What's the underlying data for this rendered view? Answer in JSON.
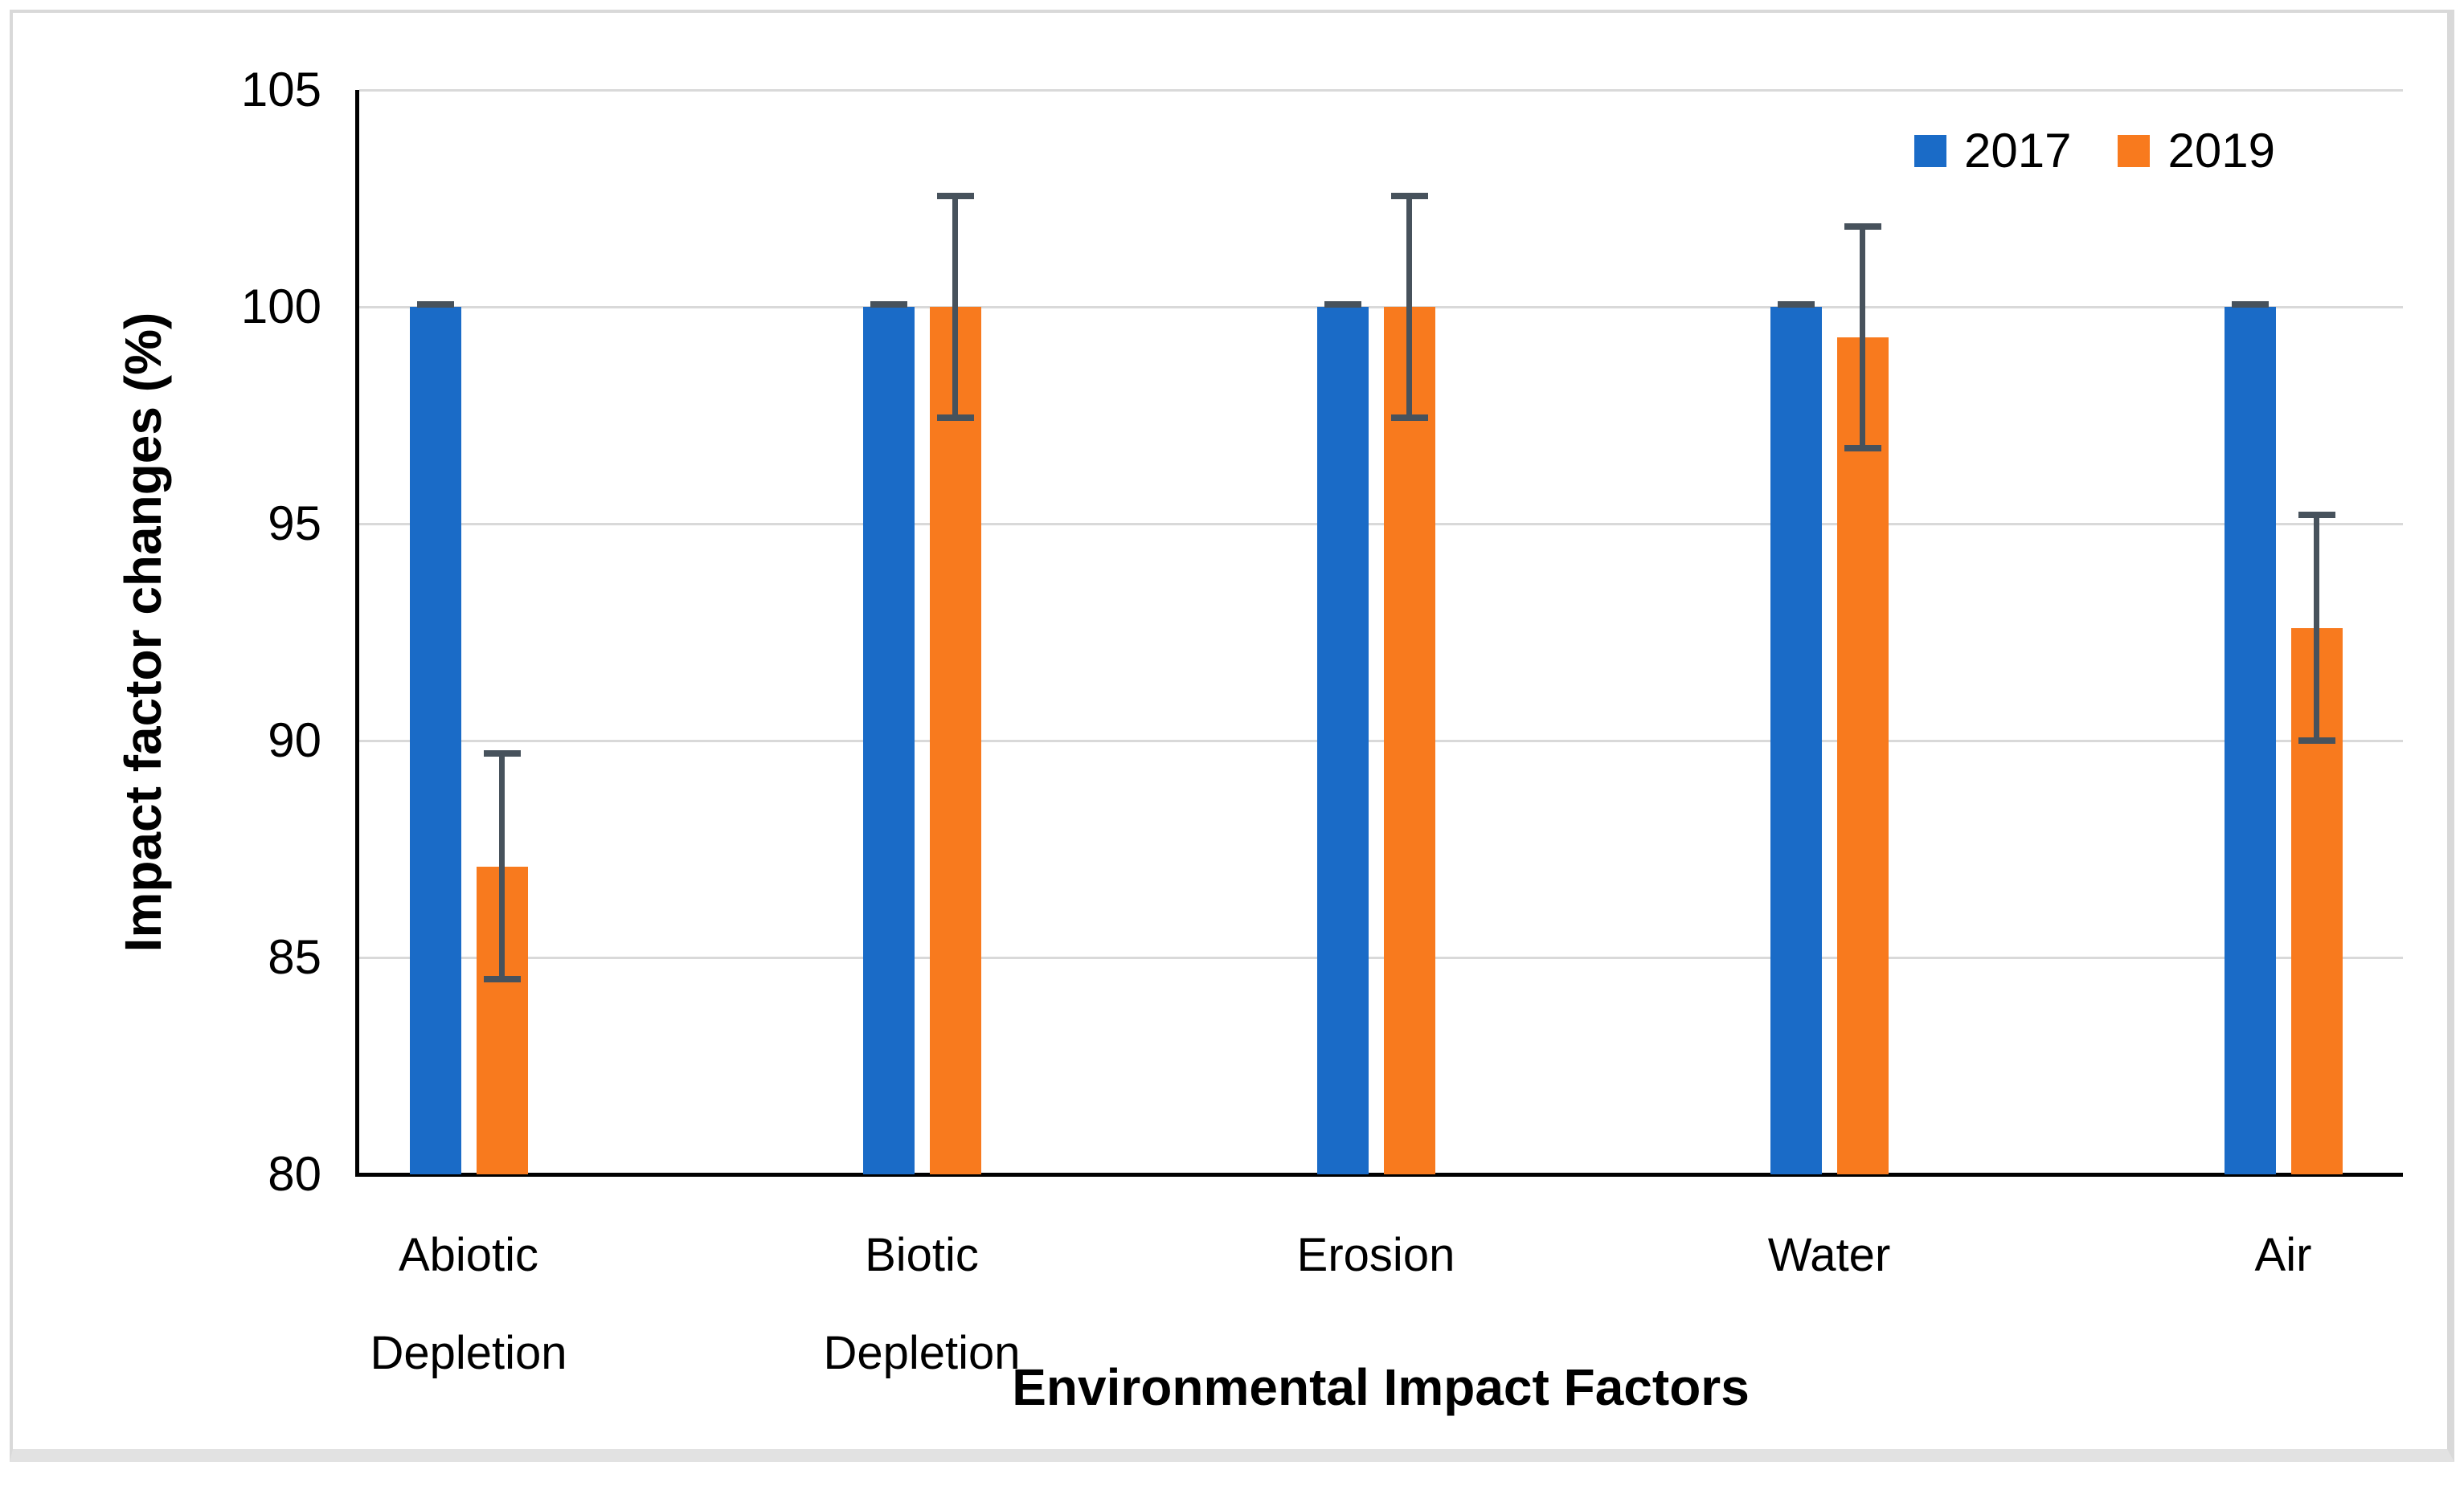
{
  "chart_data": {
    "type": "bar",
    "title": "",
    "xlabel": "Environmental Impact Factors",
    "ylabel": "Impact factor changes (%)",
    "categories": [
      "Abiotic Depletion",
      "Biotic Depletion",
      "Erosion",
      "Water",
      "Air"
    ],
    "series": [
      {
        "name": "2017",
        "color": "#1A6BC7",
        "values": [
          100,
          100,
          100,
          100,
          100
        ],
        "errors": [
          0.05,
          0.05,
          0.05,
          0.05,
          0.05
        ]
      },
      {
        "name": "2019",
        "color": "#F87A1E",
        "values": [
          87.1,
          100,
          100,
          99.3,
          92.6
        ],
        "errors": [
          2.6,
          2.55,
          2.55,
          2.55,
          2.6
        ]
      }
    ],
    "ylim": [
      80,
      105
    ],
    "yticks": [
      80,
      85,
      90,
      95,
      100,
      105
    ],
    "grid": true,
    "legend_position": "top-right",
    "error_bar_color": "#47525C",
    "gridline_color": "#D9D9D9",
    "axis_color": "#000000"
  }
}
